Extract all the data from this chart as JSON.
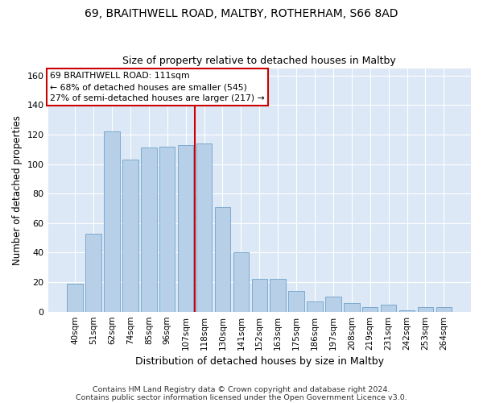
{
  "title1": "69, BRAITHWELL ROAD, MALTBY, ROTHERHAM, S66 8AD",
  "title2": "Size of property relative to detached houses in Maltby",
  "xlabel": "Distribution of detached houses by size in Maltby",
  "ylabel": "Number of detached properties",
  "categories": [
    "40sqm",
    "51sqm",
    "62sqm",
    "74sqm",
    "85sqm",
    "96sqm",
    "107sqm",
    "118sqm",
    "130sqm",
    "141sqm",
    "152sqm",
    "163sqm",
    "175sqm",
    "186sqm",
    "197sqm",
    "208sqm",
    "219sqm",
    "231sqm",
    "242sqm",
    "253sqm",
    "264sqm"
  ],
  "values": [
    19,
    53,
    122,
    103,
    111,
    112,
    113,
    114,
    71,
    40,
    22,
    22,
    14,
    7,
    10,
    6,
    3,
    5,
    1,
    3,
    3
  ],
  "bar_color": "#b8cfe8",
  "bar_edge_color": "#7aaad0",
  "background_color": "#dce8f5",
  "grid_color": "#ffffff",
  "vline_color": "#cc0000",
  "annotation_line1": "69 BRAITHWELL ROAD: 111sqm",
  "annotation_line2": "← 68% of detached houses are smaller (545)",
  "annotation_line3": "27% of semi-detached houses are larger (217) →",
  "annotation_box_color": "#cc0000",
  "ylim": [
    0,
    165
  ],
  "yticks": [
    0,
    20,
    40,
    60,
    80,
    100,
    120,
    140,
    160
  ],
  "footnote1": "Contains HM Land Registry data © Crown copyright and database right 2024.",
  "footnote2": "Contains public sector information licensed under the Open Government Licence v3.0."
}
